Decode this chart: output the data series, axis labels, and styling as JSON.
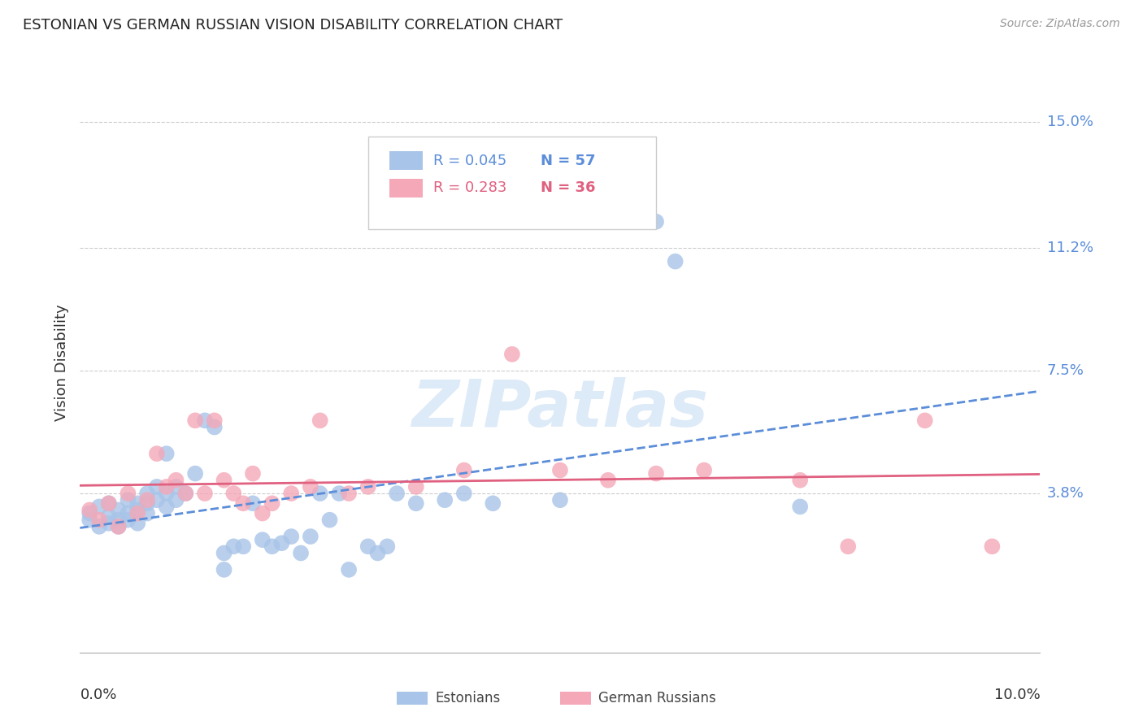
{
  "title": "ESTONIAN VS GERMAN RUSSIAN VISION DISABILITY CORRELATION CHART",
  "source": "Source: ZipAtlas.com",
  "ylabel": "Vision Disability",
  "ytick_labels": [
    "15.0%",
    "11.2%",
    "7.5%",
    "3.8%"
  ],
  "ytick_values": [
    0.15,
    0.112,
    0.075,
    0.038
  ],
  "xmin": 0.0,
  "xmax": 0.1,
  "ymin": -0.01,
  "ymax": 0.165,
  "legend_r1": "R = 0.045",
  "legend_n1": "N = 57",
  "legend_r2": "R = 0.283",
  "legend_n2": "N = 36",
  "color_blue": "#a8c4e8",
  "color_pink": "#f4a8b8",
  "color_blue_text": "#5b8dd9",
  "color_pink_text": "#e06080",
  "watermark_color": "#ddeaf8",
  "background_color": "#ffffff",
  "estonian_x": [
    0.001,
    0.001,
    0.002,
    0.002,
    0.003,
    0.003,
    0.003,
    0.004,
    0.004,
    0.004,
    0.005,
    0.005,
    0.005,
    0.006,
    0.006,
    0.006,
    0.007,
    0.007,
    0.007,
    0.008,
    0.008,
    0.009,
    0.009,
    0.009,
    0.01,
    0.01,
    0.011,
    0.012,
    0.013,
    0.014,
    0.015,
    0.015,
    0.016,
    0.017,
    0.018,
    0.019,
    0.02,
    0.021,
    0.022,
    0.023,
    0.024,
    0.025,
    0.026,
    0.027,
    0.028,
    0.03,
    0.031,
    0.032,
    0.033,
    0.035,
    0.038,
    0.04,
    0.043,
    0.05,
    0.06,
    0.062,
    0.075
  ],
  "estonian_y": [
    0.032,
    0.03,
    0.034,
    0.028,
    0.035,
    0.031,
    0.029,
    0.033,
    0.03,
    0.028,
    0.036,
    0.032,
    0.03,
    0.035,
    0.033,
    0.029,
    0.038,
    0.035,
    0.032,
    0.04,
    0.036,
    0.05,
    0.038,
    0.034,
    0.036,
    0.04,
    0.038,
    0.044,
    0.06,
    0.058,
    0.02,
    0.015,
    0.022,
    0.022,
    0.035,
    0.024,
    0.022,
    0.023,
    0.025,
    0.02,
    0.025,
    0.038,
    0.03,
    0.038,
    0.015,
    0.022,
    0.02,
    0.022,
    0.038,
    0.035,
    0.036,
    0.038,
    0.035,
    0.036,
    0.12,
    0.108,
    0.034
  ],
  "german_x": [
    0.001,
    0.002,
    0.003,
    0.004,
    0.005,
    0.006,
    0.007,
    0.008,
    0.009,
    0.01,
    0.011,
    0.012,
    0.013,
    0.014,
    0.015,
    0.016,
    0.017,
    0.018,
    0.019,
    0.02,
    0.022,
    0.024,
    0.025,
    0.028,
    0.03,
    0.035,
    0.04,
    0.045,
    0.05,
    0.055,
    0.06,
    0.065,
    0.075,
    0.08,
    0.088,
    0.095
  ],
  "german_y": [
    0.033,
    0.03,
    0.035,
    0.028,
    0.038,
    0.032,
    0.036,
    0.05,
    0.04,
    0.042,
    0.038,
    0.06,
    0.038,
    0.06,
    0.042,
    0.038,
    0.035,
    0.044,
    0.032,
    0.035,
    0.038,
    0.04,
    0.06,
    0.038,
    0.04,
    0.04,
    0.045,
    0.08,
    0.045,
    0.042,
    0.044,
    0.045,
    0.042,
    0.022,
    0.06,
    0.022
  ]
}
